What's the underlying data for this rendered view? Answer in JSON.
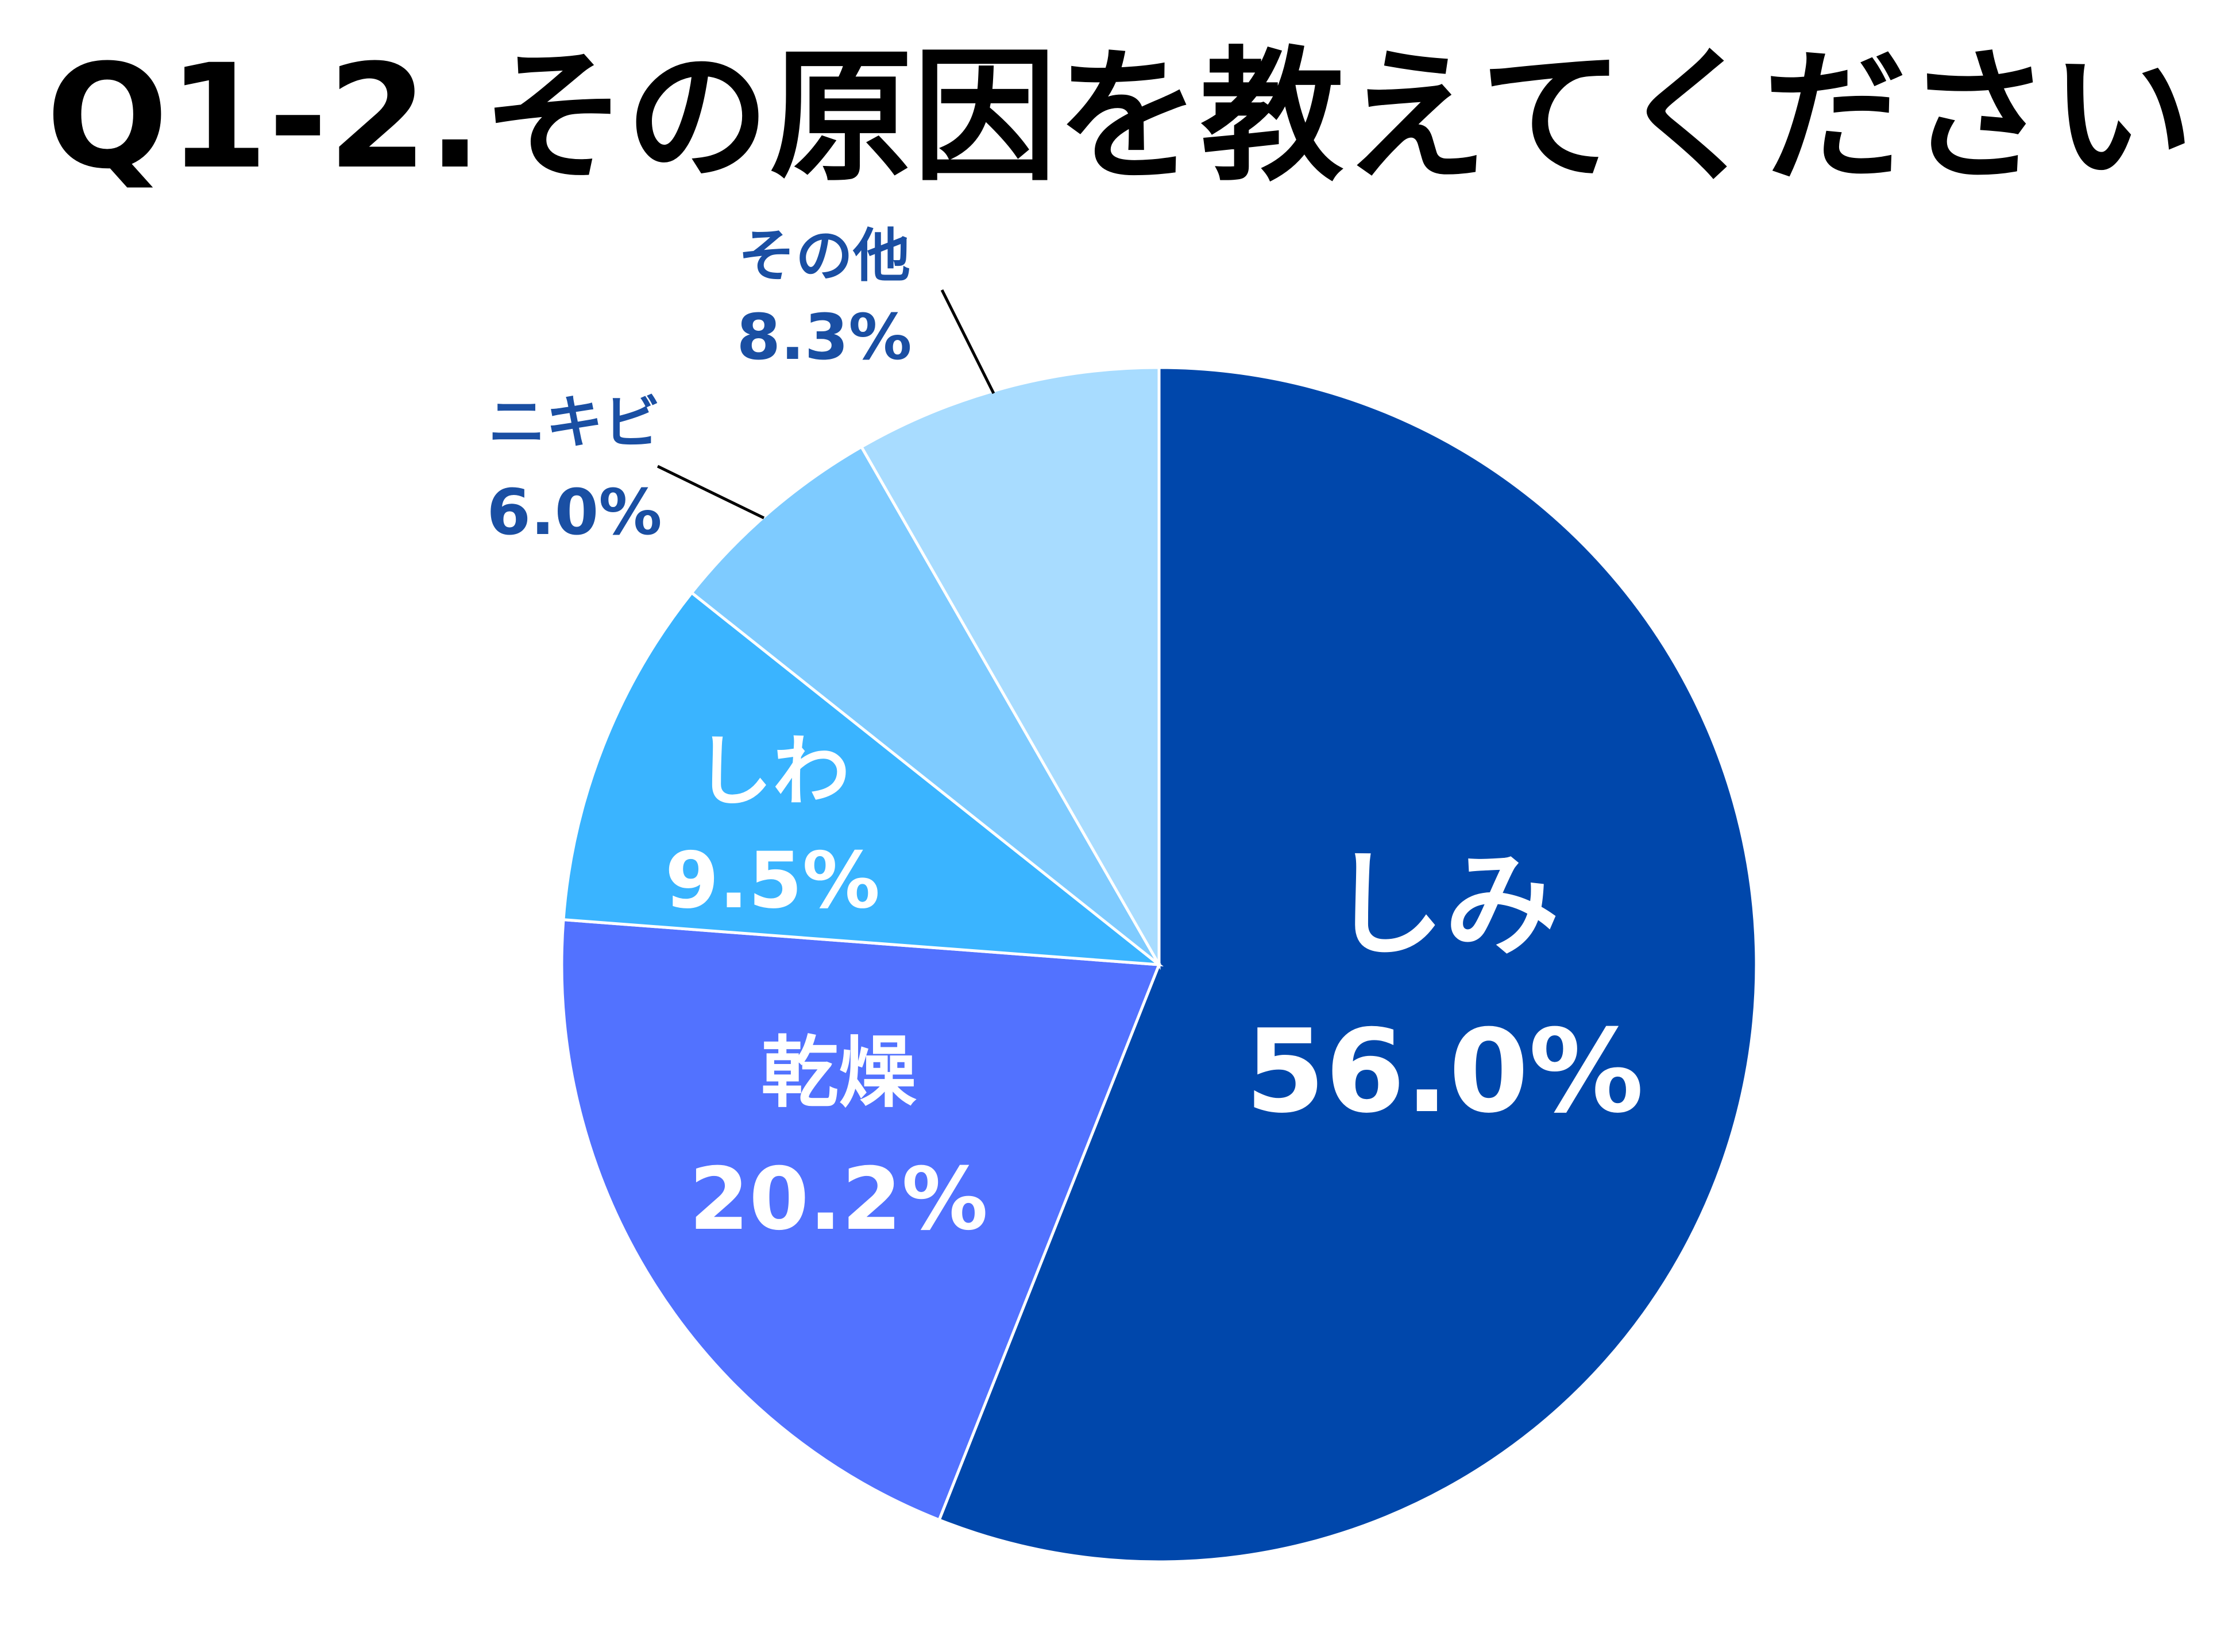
{
  "chart_data": {
    "type": "pie",
    "title": "Q1-2.その原因を教えてください",
    "categories": [
      "しみ",
      "乾燥",
      "しわ",
      "ニキビ",
      "その他"
    ],
    "values": [
      56.0,
      20.2,
      9.5,
      6.0,
      8.3
    ],
    "value_labels": [
      "56.0%",
      "20.2%",
      "9.5%",
      "6.0%",
      "8.3%"
    ],
    "colors": [
      "#0047AB",
      "#5272FF",
      "#3AB4FF",
      "#7ECBFF",
      "#A8DCFF"
    ],
    "start": "12 o'clock",
    "direction": "clockwise",
    "legend": "none",
    "label_colors": {
      "inside": "#ffffff",
      "outside": "#1A4FA3"
    },
    "leader_lines": true
  }
}
